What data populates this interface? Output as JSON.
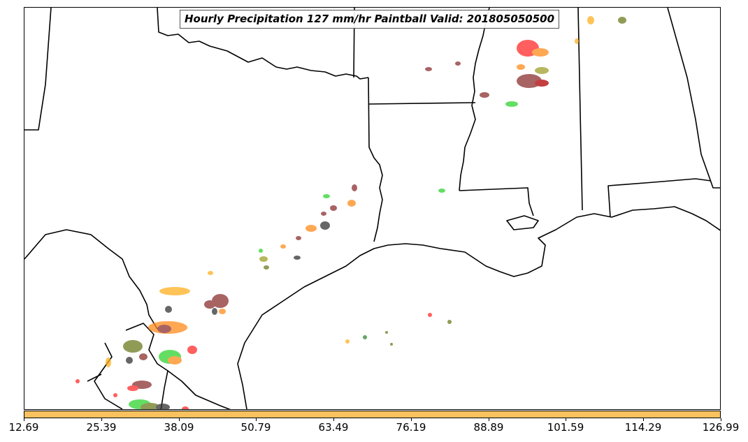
{
  "title": "Hourly Precipitation 127 mm/hr Paintball Valid: 201805050500",
  "colorbar": {
    "color": "#f9c25f",
    "tick_labels": [
      "12.69",
      "25.39",
      "38.09",
      "50.79",
      "63.49",
      "76.19",
      "88.89",
      "101.59",
      "114.29",
      "126.99"
    ]
  },
  "paintball_colors": [
    "#ff2a2a",
    "#8b2f2f",
    "#ff8c1a",
    "#ffb020",
    "#2fd42f",
    "#6b7a1e",
    "#333333",
    "#a0a02a"
  ]
}
